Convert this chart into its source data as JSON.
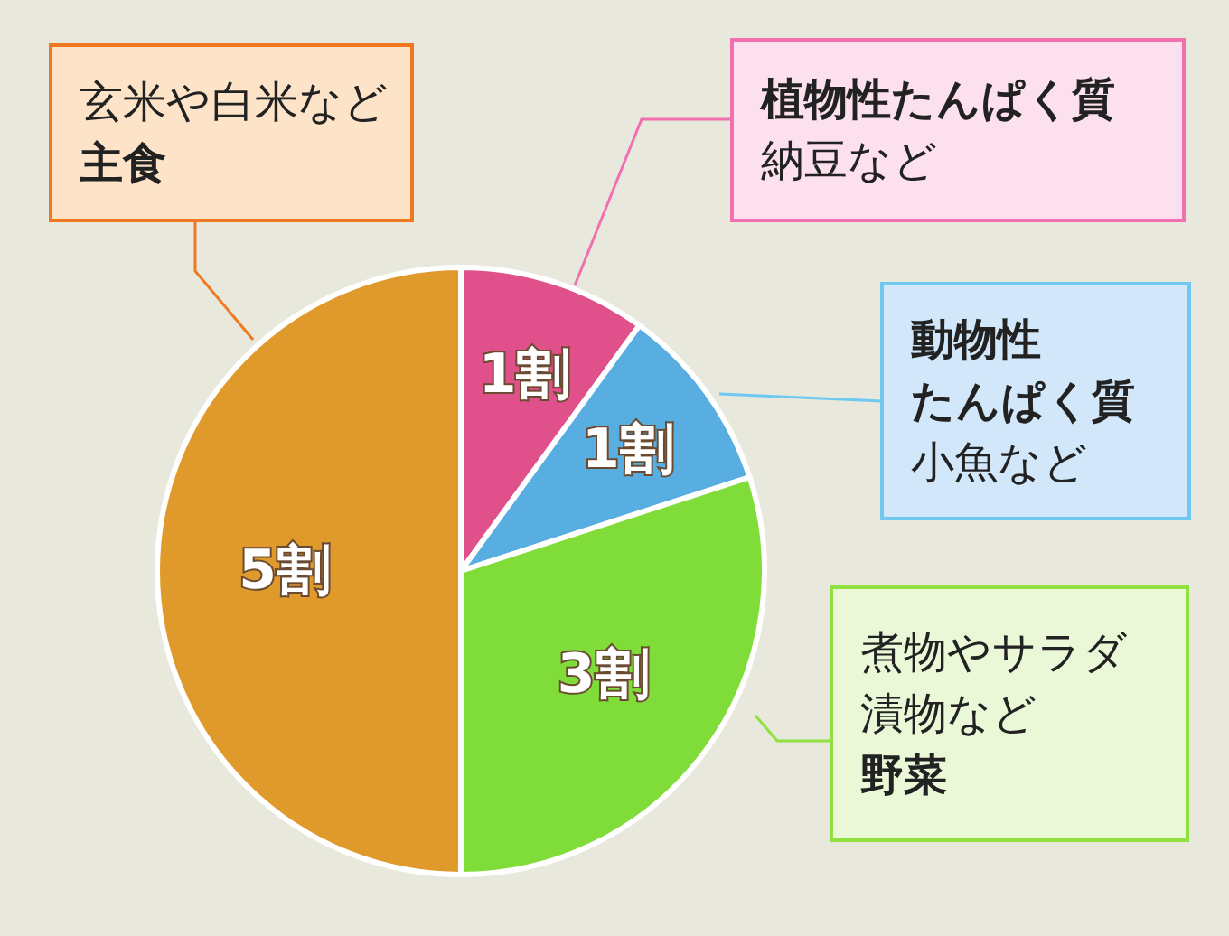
{
  "chart_data": {
    "type": "pie",
    "categories": [
      "植物性たんぱく質",
      "動物性たんぱく質",
      "野菜",
      "主食"
    ],
    "values": [
      1,
      1,
      3,
      5
    ],
    "value_labels": [
      "1割",
      "1割",
      "3割",
      "5割"
    ],
    "colors": [
      "#e0508a",
      "#58aee0",
      "#80dc38",
      "#e09a2c"
    ],
    "annotations": [
      "納豆など",
      "小魚など",
      "煮物やサラダ漬物など",
      "玄米や白米など"
    ]
  }
}
